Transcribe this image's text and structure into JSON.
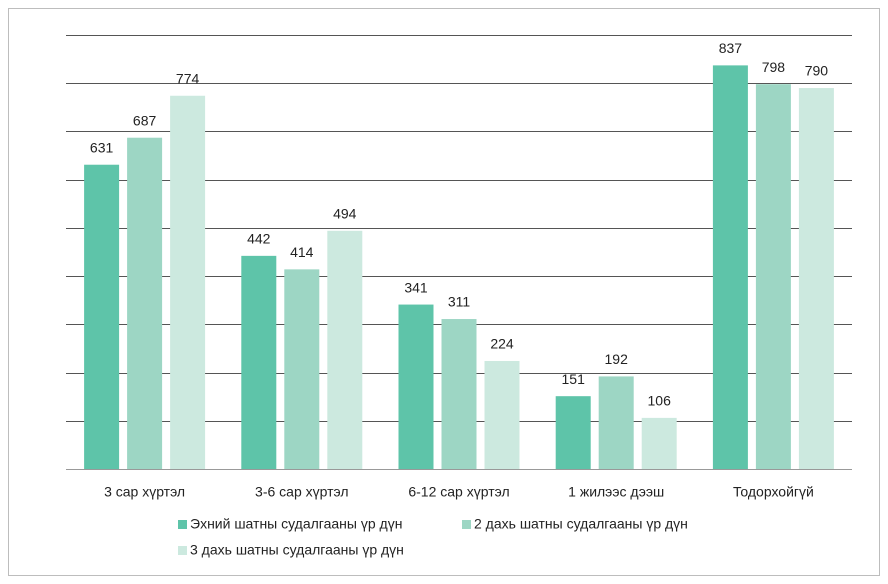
{
  "chart_data": {
    "type": "bar",
    "categories": [
      "3 сар хүртэл",
      "3-6 сар хүртэл",
      "6-12 сар хүртэл",
      "1 жилээс дээш",
      "Тодорхойгүй"
    ],
    "series": [
      {
        "name": "Эхний шатны судалгааны үр дүн",
        "color": "#5ec4a9",
        "values": [
          631,
          442,
          341,
          151,
          837
        ]
      },
      {
        "name": "2 дахь шатны судалгааны үр дүн",
        "color": "#9dd6c4",
        "values": [
          687,
          414,
          311,
          192,
          798
        ]
      },
      {
        "name": "3 дахь шатны судалгааны үр дүн",
        "color": "#cce9df",
        "values": [
          774,
          494,
          224,
          106,
          790
        ]
      }
    ],
    "ylim": [
      0,
      900
    ],
    "yticks": [
      0,
      100,
      200,
      300,
      400,
      500,
      600,
      700,
      800,
      900
    ],
    "grid": true,
    "legend": "bottom"
  }
}
